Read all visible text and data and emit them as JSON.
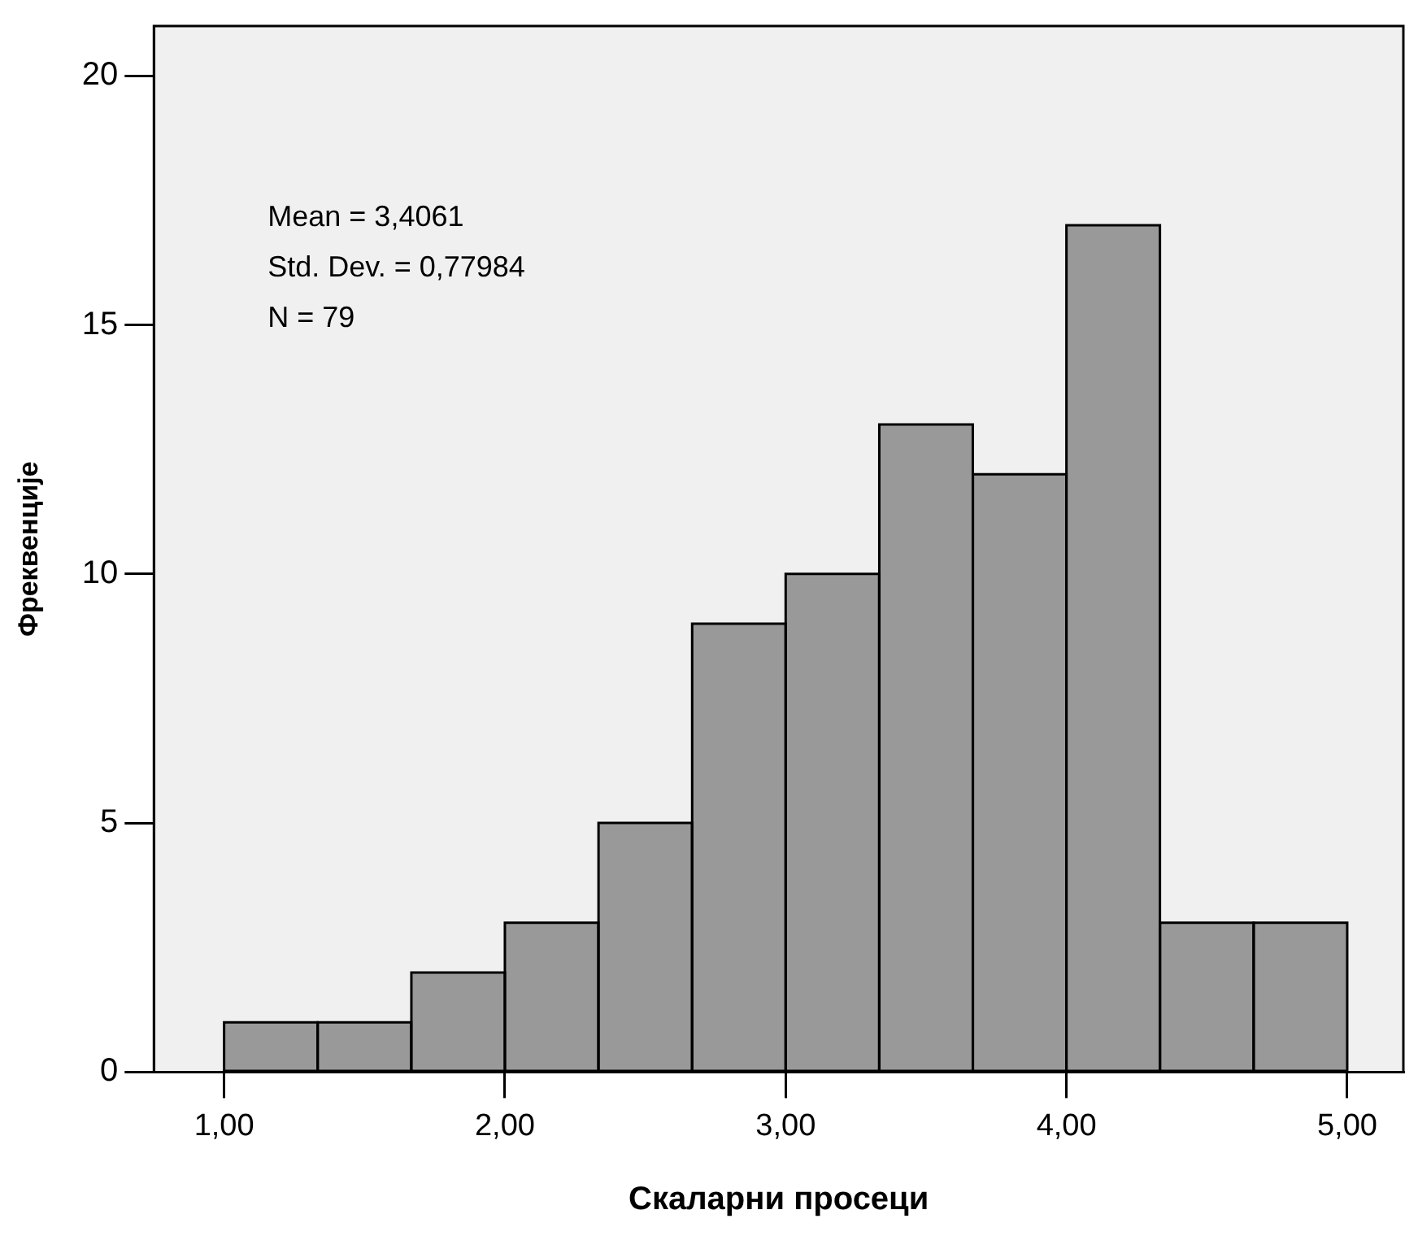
{
  "chart_data": {
    "type": "histogram",
    "xlabel": "Скаларни просеци",
    "ylabel": "Фреквенције",
    "bins": [
      1,
      1.333,
      1.667,
      2,
      2.333,
      2.667,
      3,
      3.333,
      3.667,
      4,
      4.333,
      4.667,
      5
    ],
    "values": [
      1,
      1,
      2,
      3,
      5,
      9,
      10,
      13,
      12,
      17,
      3,
      3
    ],
    "color": "#999999",
    "xlim": [
      0.75,
      5.2
    ],
    "ylim": [
      0,
      21
    ],
    "xticks": [
      {
        "value": 1,
        "label": "1,00"
      },
      {
        "value": 2,
        "label": "2,00"
      },
      {
        "value": 3,
        "label": "3,00"
      },
      {
        "value": 4,
        "label": "4,00"
      },
      {
        "value": 5,
        "label": "5,00"
      }
    ],
    "yticks": [
      0,
      5,
      10,
      15,
      20
    ],
    "grid": false,
    "legend": false,
    "annotations": [
      "Mean = 3,4061",
      "Std. Dev. = 0,77984",
      "N = 79"
    ]
  }
}
